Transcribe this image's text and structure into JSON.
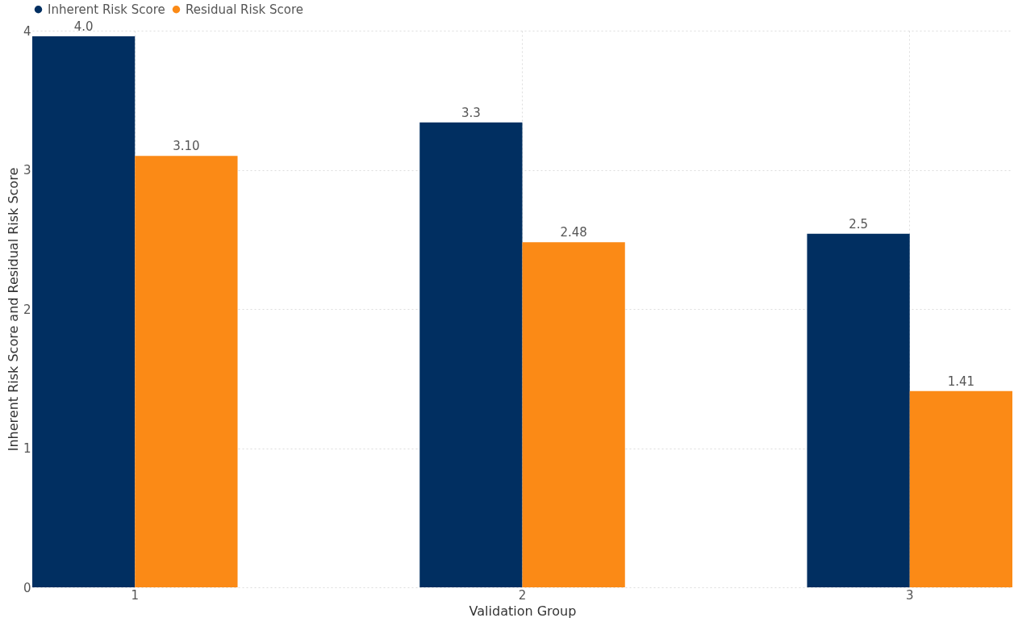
{
  "chart_data": {
    "type": "bar",
    "categories": [
      "1",
      "2",
      "3"
    ],
    "xlabel": "Validation Group",
    "ylabel": "Inherent Risk Score and Residual Risk Score",
    "series": [
      {
        "name": "Inherent Risk Score",
        "color": "#012f61",
        "values": [
          3.96,
          3.34,
          2.54
        ],
        "value_labels": [
          "4.0",
          "3.3",
          "2.5"
        ]
      },
      {
        "name": "Residual Risk Score",
        "color": "#fb8a16",
        "values": [
          3.1,
          2.48,
          1.41
        ],
        "value_labels": [
          "3.10",
          "2.48",
          "1.41"
        ]
      }
    ],
    "ylim": [
      0,
      4
    ],
    "yticks": [
      0,
      1,
      2,
      3,
      4
    ],
    "grid": true,
    "legend": "top left"
  }
}
